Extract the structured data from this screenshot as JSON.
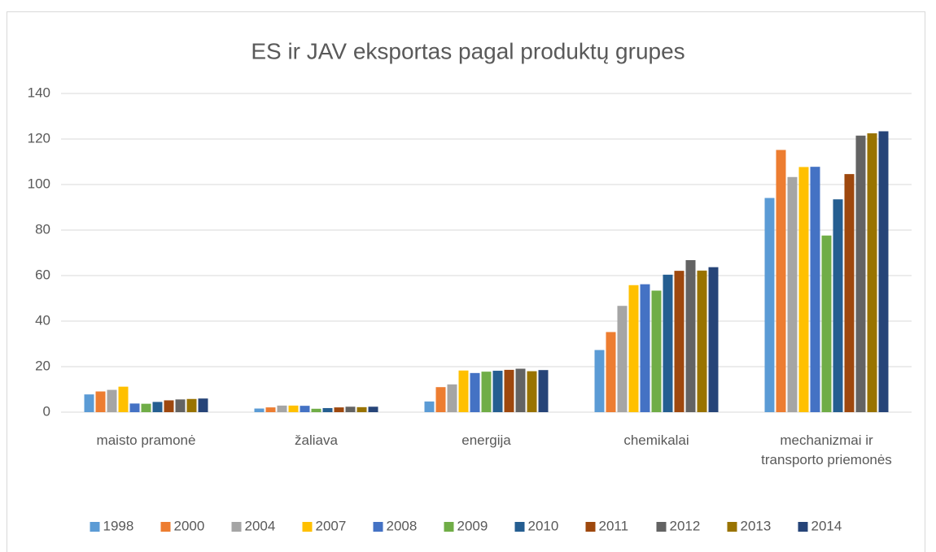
{
  "chart_data": {
    "type": "bar",
    "title": "ES ir JAV eksportas pagal produktų grupes",
    "categories": [
      "maisto pramonė",
      "žaliava",
      "energija",
      "chemikalai",
      "mechanizmai ir transporto priemonės"
    ],
    "series": [
      {
        "name": "1998",
        "color": "#5b9bd5",
        "values": [
          7.8,
          1.6,
          4.7,
          27.3,
          94.1
        ]
      },
      {
        "name": "2000",
        "color": "#ed7d31",
        "values": [
          9.1,
          2.1,
          11.0,
          35.2,
          115.2
        ]
      },
      {
        "name": "2004",
        "color": "#a5a5a5",
        "values": [
          9.8,
          2.9,
          12.2,
          46.7,
          103.3
        ]
      },
      {
        "name": "2007",
        "color": "#ffc000",
        "values": [
          11.2,
          2.9,
          18.3,
          55.8,
          107.7
        ]
      },
      {
        "name": "2008",
        "color": "#4472c4",
        "values": [
          3.8,
          2.8,
          17.2,
          56.2,
          107.8
        ]
      },
      {
        "name": "2009",
        "color": "#70ad47",
        "values": [
          3.7,
          1.5,
          17.8,
          53.4,
          77.6
        ]
      },
      {
        "name": "2010",
        "color": "#255e91",
        "values": [
          4.5,
          1.8,
          18.2,
          60.4,
          93.5
        ]
      },
      {
        "name": "2011",
        "color": "#9e480e",
        "values": [
          5.2,
          2.1,
          18.6,
          62.1,
          104.6
        ]
      },
      {
        "name": "2012",
        "color": "#636363",
        "values": [
          5.6,
          2.4,
          19.1,
          66.8,
          121.5
        ]
      },
      {
        "name": "2013",
        "color": "#997300",
        "values": [
          5.8,
          2.2,
          18.0,
          62.2,
          122.5
        ]
      },
      {
        "name": "2014",
        "color": "#264478",
        "values": [
          6.0,
          2.4,
          18.5,
          63.7,
          123.4
        ]
      }
    ],
    "ylim": [
      0,
      140
    ],
    "yticks": [
      0,
      20,
      40,
      60,
      80,
      100,
      120,
      140
    ],
    "grid": true,
    "legend": "bottom"
  }
}
